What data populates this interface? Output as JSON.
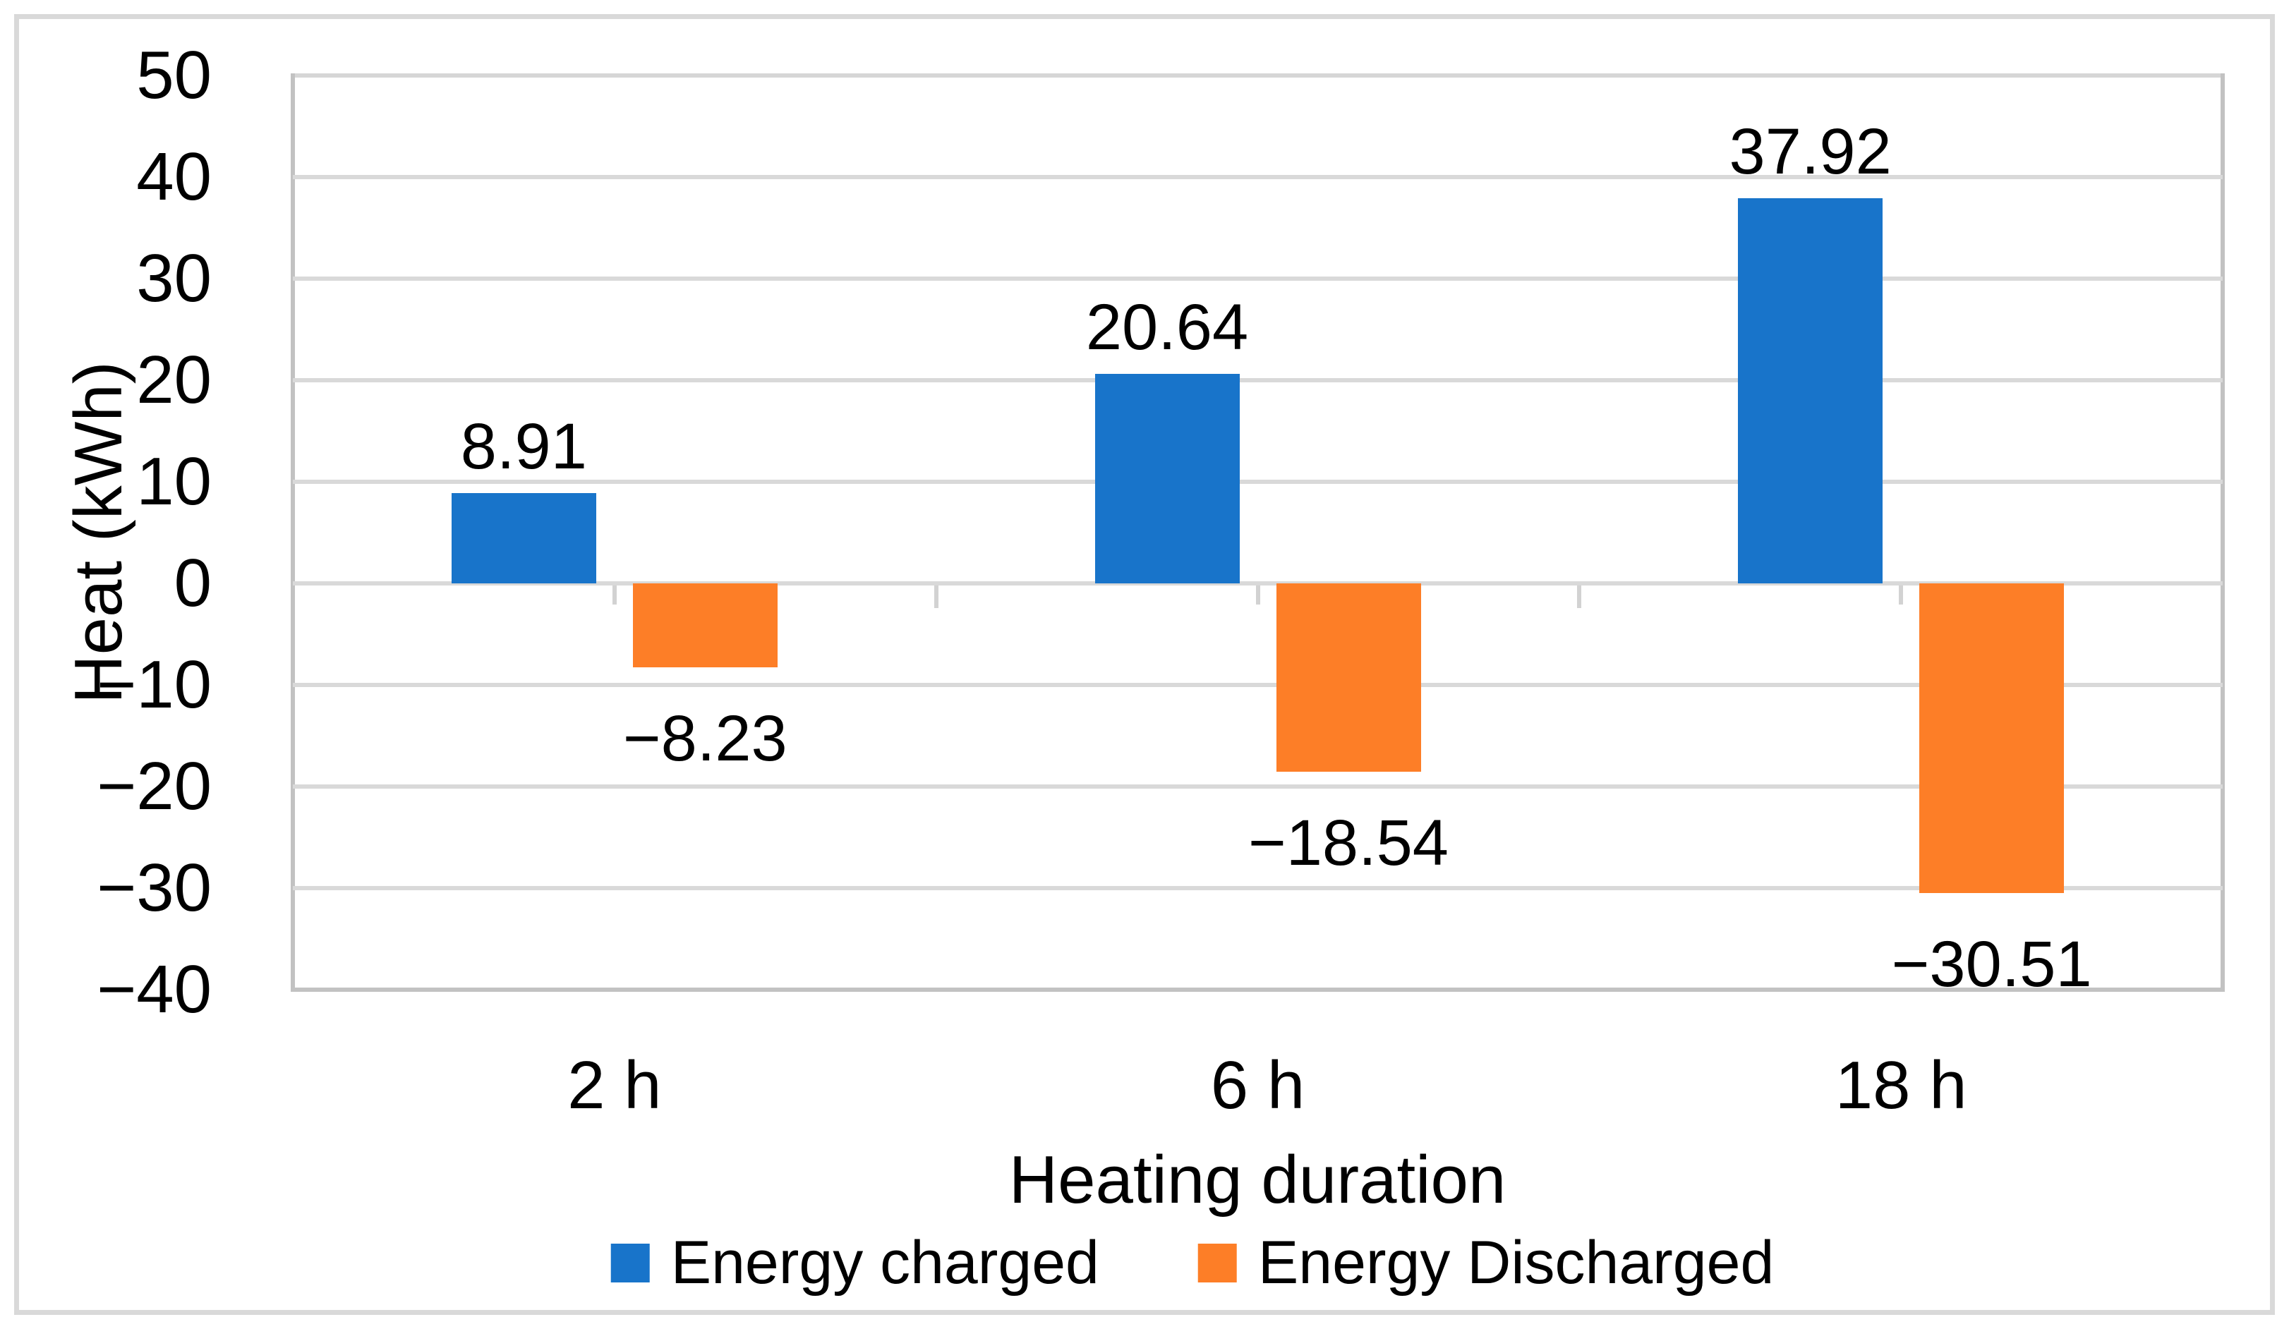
{
  "chart_data": {
    "type": "bar",
    "categories": [
      "2 h",
      "6 h",
      "18 h"
    ],
    "series": [
      {
        "name": "Energy charged",
        "color": "#1874CA",
        "values": [
          8.91,
          20.64,
          37.92
        ],
        "labels": [
          "8.91",
          "20.64",
          "37.92"
        ]
      },
      {
        "name": "Energy Discharged",
        "color": "#FD7E27",
        "values": [
          -8.23,
          -18.54,
          -30.51
        ],
        "labels": [
          "−8.23",
          "−18.54",
          "−30.51"
        ]
      }
    ],
    "title": "",
    "xlabel": "Heating duration",
    "ylabel": "Heat (kWh)",
    "ylim": [
      -40,
      50
    ],
    "y_tick_step": 10,
    "y_ticks": [
      "50",
      "40",
      "30",
      "20",
      "10",
      "0",
      "−10",
      "−20",
      "−30",
      "−40"
    ],
    "grid": "horizontal-only",
    "gridline_color": "#D9D9D9",
    "axis_line_color": "#C2C2C2",
    "frame_color": "#D9D9D9",
    "label_color": "#000000",
    "legend_position": "bottom",
    "data_labels": "outside-end"
  }
}
